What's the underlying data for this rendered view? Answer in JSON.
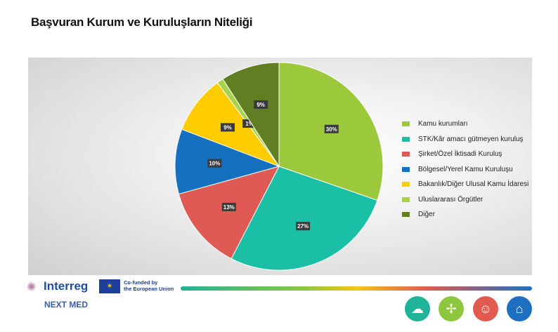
{
  "chart_data": {
    "type": "pie",
    "title": "Başvuran Kurum ve Kuruluşların Niteliği",
    "legend_position": "right",
    "slices": [
      {
        "label": "Kamu kurumları",
        "value": 30,
        "data_label": "30%",
        "color": "#9cc93b"
      },
      {
        "label": "STK/Kâr amacı gütmeyen kuruluş",
        "value": 27,
        "data_label": "27%",
        "color": "#1bbfa6"
      },
      {
        "label": "Şirket/Özel İktisadi Kuruluş",
        "value": 13,
        "data_label": "13%",
        "color": "#e05a55"
      },
      {
        "label": "Bölgesel/Yerel Kamu Kuruluşu",
        "value": 10,
        "data_label": "10%",
        "color": "#1570bf"
      },
      {
        "label": "Bakanlık/Diğer Ulusal Kamu İdaresi",
        "value": 9,
        "data_label": "9%",
        "color": "#ffcc00"
      },
      {
        "label": "Uluslararası Örgütler",
        "value": 1,
        "data_label": "1%",
        "color": "#a8d24a"
      },
      {
        "label": "Diğer",
        "value": 9,
        "data_label": "9%",
        "color": "#5f7f22"
      }
    ]
  },
  "footer": {
    "brand": "Interreg",
    "program": "NEXT MED",
    "eu_line1": "Co-funded by",
    "eu_line2": "the European Union"
  }
}
